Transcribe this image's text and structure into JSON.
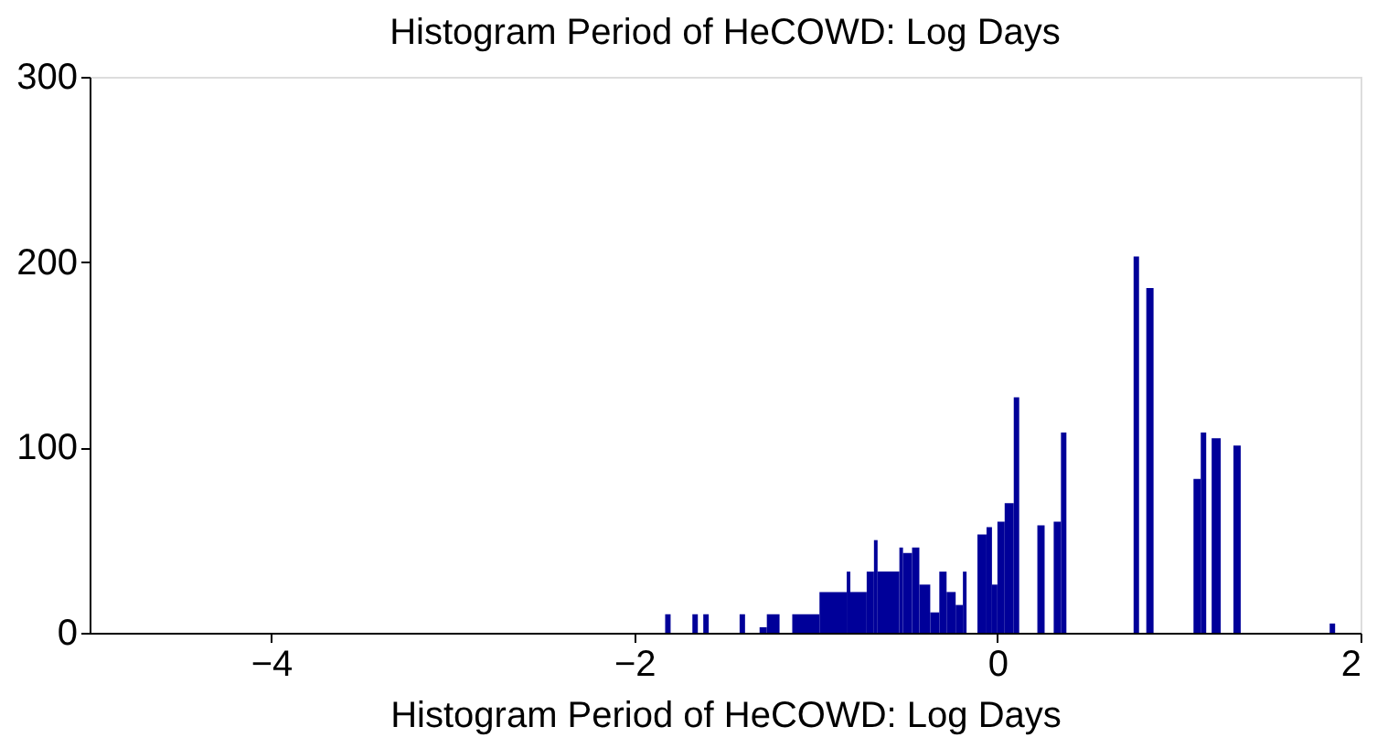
{
  "chart_data": {
    "type": "histogram",
    "title": "Histogram Period of HeCOWD: Log Days",
    "xlabel": "Histogram Period of HeCOWD: Log Days",
    "bins": [
      -1.83,
      -1.8,
      -1.68,
      -1.65,
      -1.62,
      -1.59,
      -1.42,
      -1.39,
      -1.31,
      -1.27,
      -1.2,
      -1.13,
      -0.98,
      -0.83,
      -0.81,
      -0.72,
      -0.68,
      -0.66,
      -0.54,
      -0.52,
      -0.47,
      -0.43,
      -0.37,
      -0.32,
      -0.28,
      -0.23,
      -0.19,
      -0.17,
      -0.11,
      -0.06,
      -0.03,
      0.0,
      0.04,
      0.09,
      0.12,
      0.22,
      0.26,
      0.31,
      0.35,
      0.38,
      0.75,
      0.78,
      0.82,
      0.86,
      1.08,
      1.12,
      1.15,
      1.18,
      1.23,
      1.3,
      1.34,
      1.83,
      1.86
    ],
    "values": [
      10,
      0,
      10,
      0,
      10,
      0,
      10,
      0,
      3,
      10,
      0,
      10,
      22,
      33,
      22,
      33,
      50,
      33,
      46,
      43,
      46,
      26,
      11,
      33,
      22,
      15,
      33,
      0,
      53,
      57,
      26,
      60,
      70,
      127,
      0,
      58,
      0,
      60,
      108,
      0,
      203,
      0,
      186,
      0,
      83,
      108,
      0,
      105,
      0,
      101,
      0,
      5
    ],
    "color": "#000099",
    "xlim": [
      -5,
      2
    ],
    "ylim": [
      0,
      300
    ],
    "xticks": [
      -4,
      -2,
      0,
      2
    ],
    "yticks": [
      0,
      100,
      200,
      300
    ],
    "grid": false
  }
}
